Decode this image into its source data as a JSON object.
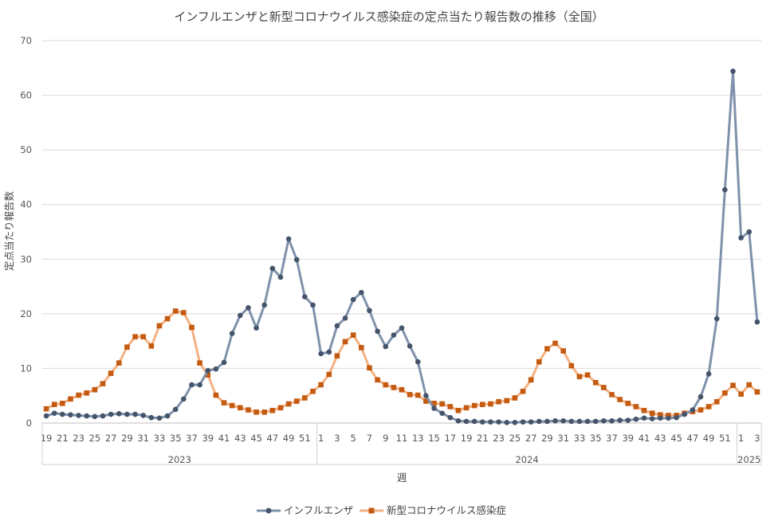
{
  "chart_data": {
    "type": "line",
    "title": "インフルエンザと新型コロナウイルス感染症の定点当たり報告数の推移（全国）",
    "xlabel": "週",
    "ylabel": "定点当たり報告数",
    "ylim": [
      0,
      70
    ],
    "yticks": [
      0,
      10,
      20,
      30,
      40,
      50,
      60,
      70
    ],
    "grid": "horizontal",
    "legend_position": "bottom",
    "year_groups": [
      {
        "label": "2023",
        "start_week": 19,
        "end_week": 52
      },
      {
        "label": "2024",
        "start_week": 1,
        "end_week": 52
      },
      {
        "label": "2025",
        "start_week": 1,
        "end_week": 3
      }
    ],
    "x": [
      "19",
      "20",
      "21",
      "22",
      "23",
      "24",
      "25",
      "26",
      "27",
      "28",
      "29",
      "30",
      "31",
      "32",
      "33",
      "34",
      "35",
      "36",
      "37",
      "38",
      "39",
      "40",
      "41",
      "42",
      "43",
      "44",
      "45",
      "46",
      "47",
      "48",
      "49",
      "50",
      "51",
      "52",
      "1",
      "2",
      "3",
      "4",
      "5",
      "6",
      "7",
      "8",
      "9",
      "10",
      "11",
      "12",
      "13",
      "14",
      "15",
      "16",
      "17",
      "18",
      "19",
      "20",
      "21",
      "22",
      "23",
      "24",
      "25",
      "26",
      "27",
      "28",
      "29",
      "30",
      "31",
      "32",
      "33",
      "34",
      "35",
      "36",
      "37",
      "38",
      "39",
      "40",
      "41",
      "42",
      "43",
      "44",
      "45",
      "46",
      "47",
      "48",
      "49",
      "50",
      "51",
      "52",
      "1",
      "2",
      "3"
    ],
    "tick_labels": [
      "19",
      "21",
      "23",
      "25",
      "27",
      "29",
      "31",
      "33",
      "35",
      "37",
      "39",
      "41",
      "43",
      "45",
      "47",
      "49",
      "51",
      "1",
      "3",
      "5",
      "7",
      "9",
      "11",
      "13",
      "15",
      "17",
      "19",
      "21",
      "23",
      "25",
      "27",
      "29",
      "31",
      "33",
      "35",
      "37",
      "39",
      "41",
      "43",
      "45",
      "47",
      "49",
      "51",
      "1",
      "3"
    ],
    "series": [
      {
        "name": "インフルエンザ",
        "color": "#7f91ab",
        "marker_color": "#44546a",
        "marker": "circle",
        "values": [
          1.3,
          1.8,
          1.6,
          1.5,
          1.4,
          1.3,
          1.2,
          1.3,
          1.6,
          1.7,
          1.6,
          1.6,
          1.4,
          1.0,
          0.9,
          1.3,
          2.5,
          4.4,
          7.0,
          7.0,
          9.6,
          9.9,
          11.1,
          16.4,
          19.7,
          21.1,
          17.4,
          21.6,
          28.3,
          26.7,
          33.7,
          29.9,
          23.1,
          21.6,
          12.7,
          13.0,
          17.8,
          19.2,
          22.6,
          23.9,
          20.6,
          16.8,
          14.0,
          16.1,
          17.4,
          14.1,
          11.2,
          5.0,
          2.7,
          1.8,
          1.0,
          0.4,
          0.3,
          0.3,
          0.2,
          0.2,
          0.2,
          0.1,
          0.1,
          0.2,
          0.2,
          0.3,
          0.3,
          0.4,
          0.4,
          0.3,
          0.3,
          0.3,
          0.3,
          0.4,
          0.4,
          0.5,
          0.5,
          0.7,
          0.9,
          0.8,
          0.9,
          0.9,
          1.0,
          1.6,
          2.4,
          4.8,
          9.0,
          19.1,
          42.7,
          64.4,
          33.9,
          35.0,
          18.5
        ]
      },
      {
        "name": "新型コロナウイルス感染症",
        "color": "#f4b183",
        "marker_color": "#c55a11",
        "marker": "square",
        "values": [
          2.6,
          3.4,
          3.6,
          4.4,
          5.1,
          5.5,
          6.1,
          7.2,
          9.1,
          11.0,
          13.9,
          15.8,
          15.8,
          14.1,
          17.8,
          19.1,
          20.5,
          20.2,
          17.5,
          11.0,
          8.8,
          5.1,
          3.7,
          3.2,
          2.8,
          2.4,
          2.0,
          2.0,
          2.3,
          2.8,
          3.5,
          4.0,
          4.6,
          5.8,
          7.0,
          8.9,
          12.3,
          14.9,
          16.1,
          13.8,
          10.1,
          7.9,
          7.0,
          6.5,
          6.1,
          5.2,
          5.1,
          4.0,
          3.6,
          3.5,
          3.0,
          2.3,
          2.8,
          3.2,
          3.4,
          3.5,
          3.9,
          4.1,
          4.6,
          5.8,
          7.9,
          11.2,
          13.6,
          14.6,
          13.2,
          10.5,
          8.5,
          8.8,
          7.4,
          6.5,
          5.2,
          4.3,
          3.6,
          3.0,
          2.3,
          1.8,
          1.5,
          1.4,
          1.4,
          1.8,
          2.1,
          2.4,
          3.0,
          3.9,
          5.5,
          6.9,
          5.3,
          7.0,
          5.7
        ]
      }
    ]
  }
}
